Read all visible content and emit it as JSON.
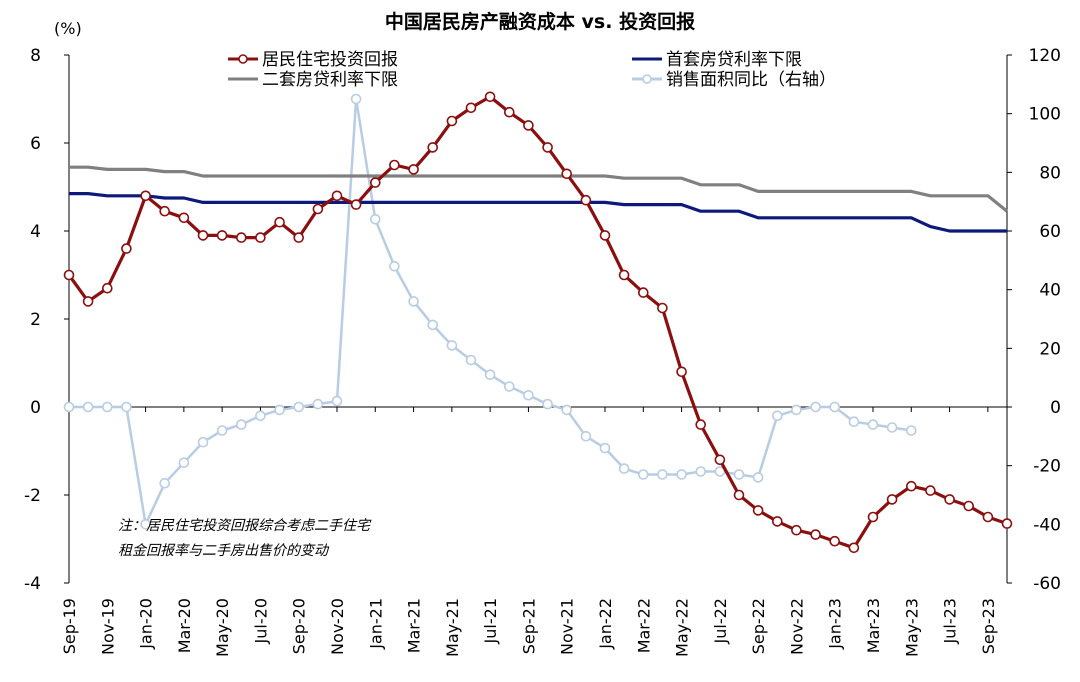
{
  "chart_data": {
    "type": "line",
    "title": "中国居民房产融资成本 vs. 投资回报",
    "left_unit": "(%)",
    "left_axis": {
      "ylim": [
        -4,
        8
      ],
      "ticks": [
        "-4",
        "-2",
        "0",
        "2",
        "4",
        "6",
        "8"
      ]
    },
    "right_axis": {
      "ylim": [
        -60,
        120
      ],
      "ticks": [
        "-60",
        "-40",
        "-20",
        "0",
        "20",
        "40",
        "60",
        "80",
        "100",
        "120"
      ]
    },
    "x_tick_labels": [
      "Sep-19",
      "Nov-19",
      "Jan-20",
      "Mar-20",
      "May-20",
      "Jul-20",
      "Sep-20",
      "Nov-20",
      "Jan-21",
      "Mar-21",
      "May-21",
      "Jul-21",
      "Sep-21",
      "Nov-21",
      "Jan-22",
      "Mar-22",
      "May-22",
      "Jul-22",
      "Sep-22",
      "Nov-22",
      "Jan-23",
      "Mar-23",
      "May-23",
      "Jul-23",
      "Sep-23"
    ],
    "legend": {
      "residential": "居民住宅投资回报",
      "first_home": "首套房贷利率下限",
      "second_home": "二套房贷利率下限",
      "sales_area": "销售面积同比（右轴）"
    },
    "note": [
      "注：居民住宅投资回报综合考虑二手住宅",
      "租金回报率与二手房出售价的变动"
    ],
    "series": [
      {
        "key": "residential",
        "axis": "left",
        "color": "#8b0f0f",
        "marker": true,
        "values": [
          3.0,
          2.4,
          2.7,
          3.6,
          4.8,
          4.45,
          4.3,
          3.9,
          3.9,
          3.85,
          3.85,
          4.2,
          3.85,
          4.5,
          4.8,
          4.6,
          5.1,
          5.5,
          5.4,
          5.9,
          6.5,
          6.8,
          7.05,
          6.7,
          6.4,
          5.9,
          5.3,
          4.7,
          3.9,
          3.0,
          2.6,
          2.25,
          0.8,
          -0.4,
          -1.2,
          -2.0,
          -2.35,
          -2.6,
          -2.8,
          -2.9,
          -3.05,
          -3.2,
          -2.5,
          -2.1,
          -1.8,
          -1.9,
          -2.1,
          -2.25,
          -2.5,
          -2.65
        ]
      },
      {
        "key": "first_home",
        "axis": "left",
        "color": "#0d1a7a",
        "marker": false,
        "values": [
          4.85,
          4.85,
          4.8,
          4.8,
          4.8,
          4.75,
          4.75,
          4.65,
          4.65,
          4.65,
          4.65,
          4.65,
          4.65,
          4.65,
          4.65,
          4.65,
          4.65,
          4.65,
          4.65,
          4.65,
          4.65,
          4.65,
          4.65,
          4.65,
          4.65,
          4.65,
          4.65,
          4.65,
          4.65,
          4.6,
          4.6,
          4.6,
          4.6,
          4.45,
          4.45,
          4.45,
          4.3,
          4.3,
          4.3,
          4.3,
          4.3,
          4.3,
          4.3,
          4.3,
          4.3,
          4.1,
          4.0,
          4.0,
          4.0,
          4.0
        ]
      },
      {
        "key": "second_home",
        "axis": "left",
        "color": "#808080",
        "marker": false,
        "values": [
          5.45,
          5.45,
          5.4,
          5.4,
          5.4,
          5.35,
          5.35,
          5.25,
          5.25,
          5.25,
          5.25,
          5.25,
          5.25,
          5.25,
          5.25,
          5.25,
          5.25,
          5.25,
          5.25,
          5.25,
          5.25,
          5.25,
          5.25,
          5.25,
          5.25,
          5.25,
          5.25,
          5.25,
          5.25,
          5.2,
          5.2,
          5.2,
          5.2,
          5.05,
          5.05,
          5.05,
          4.9,
          4.9,
          4.9,
          4.9,
          4.9,
          4.9,
          4.9,
          4.9,
          4.9,
          4.8,
          4.8,
          4.8,
          4.8,
          4.45
        ]
      },
      {
        "key": "sales_area",
        "axis": "right",
        "color": "#b8cce4",
        "marker": true,
        "values": [
          0,
          0,
          0,
          0,
          -40,
          -26,
          -19,
          -12,
          -8,
          -6,
          -3,
          -1,
          0,
          1,
          2,
          105,
          64,
          48,
          36,
          28,
          21,
          16,
          11,
          7,
          4,
          1,
          -1,
          -10,
          -14,
          -21,
          -23,
          -23,
          -23,
          -22,
          -22,
          -23,
          -24,
          -3,
          -1,
          0,
          0,
          -5,
          -6,
          -7,
          -8
        ]
      }
    ],
    "sales_area_start_index": 0
  }
}
